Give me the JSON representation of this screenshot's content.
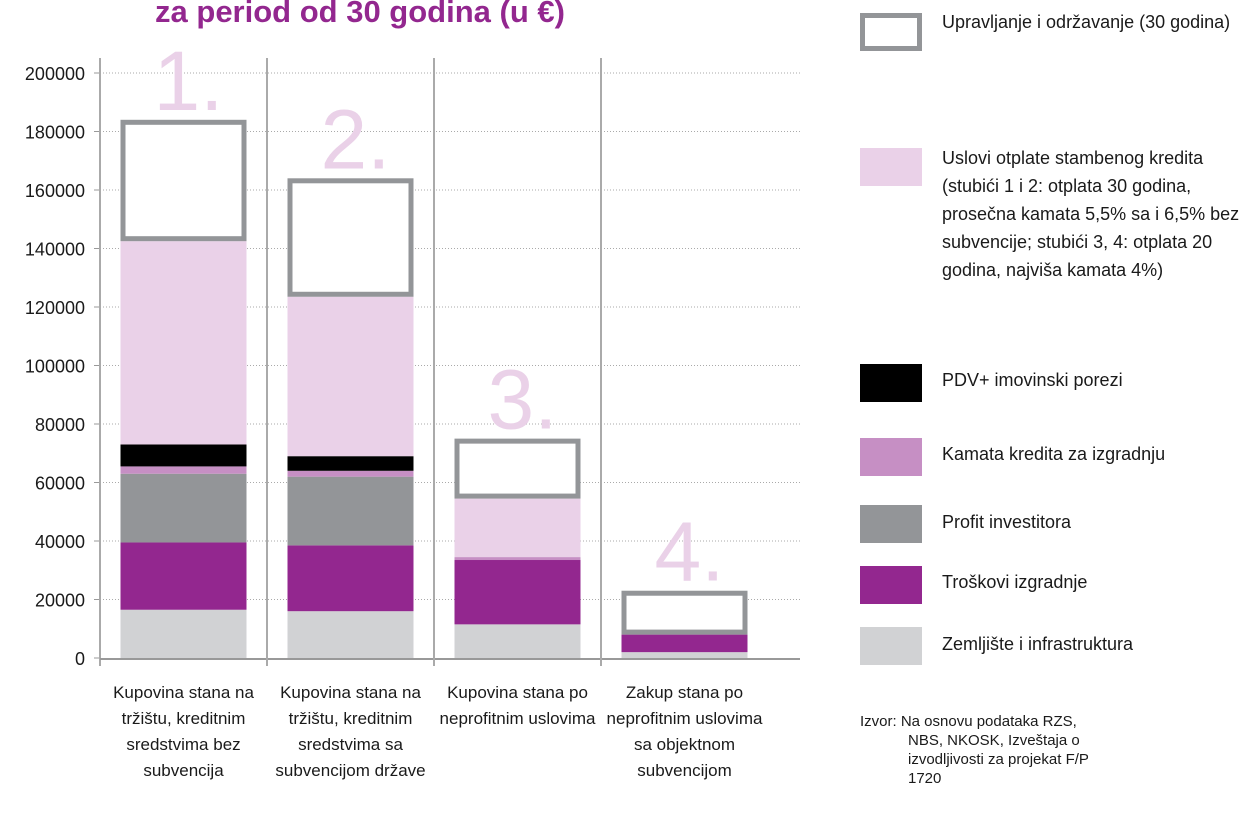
{
  "chart_data": {
    "type": "stacked_bar",
    "title": "za period od 30 godina (u €)",
    "categories": [
      "Kupovina stana na tržištu, kreditnim sredstvima bez subvencija",
      "Kupovina stana na tržištu, kreditnim sredstvima sa subvencijom države",
      "Kupovina stana po neprofitnim uslovima",
      "Zakup stana po neprofitnim uslovima sa objektnom subvencijom"
    ],
    "annotations": [
      "1.",
      "2.",
      "3.",
      "4."
    ],
    "series": [
      {
        "name": "Zemljište i infrastruktura",
        "color": "#d1d2d4",
        "values": [
          16500,
          16000,
          11500,
          2000
        ]
      },
      {
        "name": "Troškovi izgradnje",
        "color": "#93278f",
        "values": [
          23000,
          22500,
          22000,
          6000
        ]
      },
      {
        "name": "Profit investitora",
        "color": "#939598",
        "values": [
          23500,
          23500,
          0,
          0
        ]
      },
      {
        "name": "Kamata kredita za izgradnju",
        "color": "#c68fc4",
        "values": [
          2500,
          2000,
          1000,
          0
        ]
      },
      {
        "name": "PDV+ imovinski porezi",
        "color": "#000000",
        "values": [
          7500,
          5000,
          0,
          0
        ]
      },
      {
        "name": "Uslovi otplate stambenog kredita (stubići 1 i 2: otplata 30 godina, prosečna kamata 5,5% sa i 6,5% bez subvencije; stubići 3, 4: otplata 20 godina, najviša kamata 4%)",
        "color": "#ead1e8",
        "values": [
          69500,
          54500,
          20000,
          0
        ]
      },
      {
        "name": "Upravljanje i održavanje (30 godina)",
        "color": "#939598",
        "outline": true,
        "values": [
          41500,
          40500,
          20500,
          15000
        ]
      }
    ],
    "ylim": [
      0,
      200000
    ],
    "yticks": [
      0,
      20000,
      40000,
      60000,
      80000,
      100000,
      120000,
      140000,
      160000,
      180000,
      200000
    ],
    "grid": true,
    "source": "Izvor: Na osnovu podataka RZS, NBS, NKOSK, Izveštaja o izvodljivosti za projekat F/P 1720"
  }
}
